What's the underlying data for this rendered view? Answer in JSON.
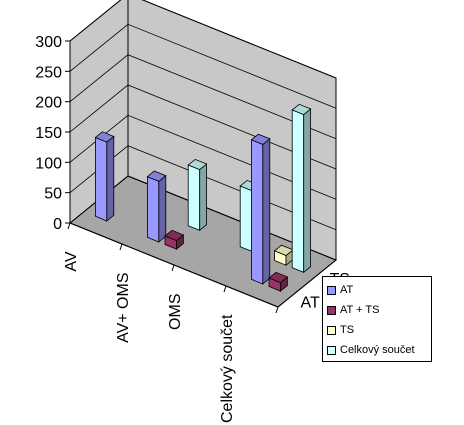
{
  "chart_data": {
    "type": "bar",
    "style": "3d-column",
    "categories": [
      "AV",
      "AV+ OMS",
      "OMS",
      "Celkový součet"
    ],
    "depth_categories": [
      "AT",
      "TS"
    ],
    "y_ticks": [
      "0",
      "50",
      "100",
      "150",
      "200",
      "250",
      "300"
    ],
    "ylim": [
      0,
      300
    ],
    "series": [
      {
        "name": "AT",
        "color": "#9999FF",
        "values": [
          130,
          100,
          0,
          230
        ]
      },
      {
        "name": "AT + TS",
        "color": "#993366",
        "values": [
          0,
          14,
          0,
          14
        ]
      },
      {
        "name": "TS",
        "color": "#FFFFCC",
        "values": [
          0,
          0,
          0,
          16
        ]
      },
      {
        "name": "Celkový součet",
        "color": "#CCFFFF",
        "values": [
          0,
          100,
          100,
          260
        ]
      }
    ],
    "legend_position": "right"
  }
}
